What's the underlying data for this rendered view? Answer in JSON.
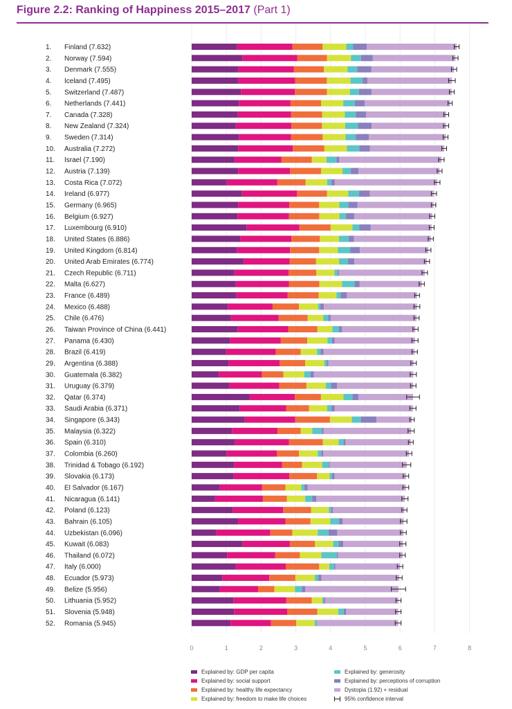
{
  "figure": {
    "title": "Figure 2.2: Ranking of Happiness 2015–2017",
    "part": "(Part 1)"
  },
  "colors": {
    "gdp": "#7e2c84",
    "social": "#e0157f",
    "health": "#ef6e3c",
    "freedom": "#d6e23c",
    "generosity": "#5cc5c6",
    "corruption": "#8a80be",
    "dystopia": "#c6a6d3",
    "title": "#8c2f8f"
  },
  "legend": {
    "gdp": "Explained by: GDP per capita",
    "social": "Explained by: social support",
    "health": "Explained by: healthy life expectancy",
    "freedom": "Explained by: freedom to make life choices",
    "generosity": "Explained by: generosity",
    "corruption": "Explained by: perceptions of corruption",
    "dystopia": "Dystopia (1.92) + residual",
    "ci": "95% confidence interval"
  },
  "chart_data": {
    "type": "bar",
    "orientation": "horizontal",
    "stacked": true,
    "xlim": [
      0,
      8
    ],
    "xticks": [
      "0",
      "1",
      "2",
      "3",
      "4",
      "5",
      "6",
      "7",
      "8"
    ],
    "component_keys": [
      "gdp",
      "social",
      "health",
      "freedom",
      "generosity",
      "corruption",
      "dystopia"
    ],
    "countries": [
      {
        "rank": "1.",
        "label": "Finland (7.632)",
        "score": 7.632,
        "ci": [
          7.56,
          7.7
        ],
        "parts": [
          1.31,
          1.59,
          0.87,
          0.68,
          0.2,
          0.39,
          2.59
        ]
      },
      {
        "rank": "2.",
        "label": "Norway (7.594)",
        "score": 7.594,
        "ci": [
          7.52,
          7.67
        ],
        "parts": [
          1.46,
          1.58,
          0.86,
          0.69,
          0.29,
          0.34,
          2.38
        ]
      },
      {
        "rank": "3.",
        "label": "Denmark (7.555)",
        "score": 7.555,
        "ci": [
          7.48,
          7.63
        ],
        "parts": [
          1.35,
          1.59,
          0.87,
          0.68,
          0.28,
          0.41,
          2.38
        ]
      },
      {
        "rank": "4.",
        "label": "Iceland (7.495)",
        "score": 7.495,
        "ci": [
          7.4,
          7.59
        ],
        "parts": [
          1.34,
          1.64,
          0.91,
          0.68,
          0.35,
          0.14,
          2.43
        ]
      },
      {
        "rank": "5.",
        "label": "Switzerland (7.487)",
        "score": 7.487,
        "ci": [
          7.42,
          7.56
        ],
        "parts": [
          1.42,
          1.55,
          0.93,
          0.66,
          0.26,
          0.36,
          2.31
        ]
      },
      {
        "rank": "6.",
        "label": "Netherlands (7.441)",
        "score": 7.441,
        "ci": [
          7.38,
          7.5
        ],
        "parts": [
          1.36,
          1.49,
          0.88,
          0.64,
          0.33,
          0.29,
          2.46
        ]
      },
      {
        "rank": "7.",
        "label": "Canada (7.328)",
        "score": 7.328,
        "ci": [
          7.26,
          7.4
        ],
        "parts": [
          1.33,
          1.53,
          0.9,
          0.65,
          0.32,
          0.29,
          2.31
        ]
      },
      {
        "rank": "8.",
        "label": "New Zealand (7.324)",
        "score": 7.324,
        "ci": [
          7.25,
          7.4
        ],
        "parts": [
          1.27,
          1.6,
          0.88,
          0.67,
          0.37,
          0.39,
          2.14
        ]
      },
      {
        "rank": "9.",
        "label": "Sweden (7.314)",
        "score": 7.314,
        "ci": [
          7.24,
          7.38
        ],
        "parts": [
          1.36,
          1.5,
          0.91,
          0.66,
          0.29,
          0.38,
          2.21
        ]
      },
      {
        "rank": "10.",
        "label": "Australia (7.272)",
        "score": 7.272,
        "ci": [
          7.2,
          7.34
        ],
        "parts": [
          1.34,
          1.57,
          0.91,
          0.65,
          0.36,
          0.3,
          2.14
        ]
      },
      {
        "rank": "11.",
        "label": "Israel (7.190)",
        "score": 7.19,
        "ci": [
          7.11,
          7.27
        ],
        "parts": [
          1.24,
          1.34,
          0.88,
          0.42,
          0.29,
          0.08,
          2.94
        ]
      },
      {
        "rank": "12.",
        "label": "Austria (7.139)",
        "score": 7.139,
        "ci": [
          7.07,
          7.21
        ],
        "parts": [
          1.34,
          1.5,
          0.89,
          0.62,
          0.24,
          0.22,
          2.34
        ]
      },
      {
        "rank": "13.",
        "label": "Costa Rica (7.072)",
        "score": 7.072,
        "ci": [
          6.99,
          7.15
        ],
        "parts": [
          1.01,
          1.45,
          0.82,
          0.62,
          0.12,
          0.1,
          2.95
        ]
      },
      {
        "rank": "14.",
        "label": "Ireland (6.977)",
        "score": 6.977,
        "ci": [
          6.9,
          7.05
        ],
        "parts": [
          1.45,
          1.58,
          0.87,
          0.61,
          0.31,
          0.31,
          1.85
        ]
      },
      {
        "rank": "15.",
        "label": "Germany (6.965)",
        "score": 6.965,
        "ci": [
          6.9,
          7.03
        ],
        "parts": [
          1.34,
          1.47,
          0.86,
          0.58,
          0.26,
          0.26,
          2.19
        ]
      },
      {
        "rank": "16.",
        "label": "Belgium (6.927)",
        "score": 6.927,
        "ci": [
          6.85,
          7.0
        ],
        "parts": [
          1.32,
          1.48,
          0.87,
          0.58,
          0.19,
          0.24,
          2.24
        ]
      },
      {
        "rank": "17.",
        "label": "Luxembourg (6.910)",
        "score": 6.91,
        "ci": [
          6.84,
          6.98
        ],
        "parts": [
          1.58,
          1.52,
          0.9,
          0.63,
          0.2,
          0.32,
          1.76
        ]
      },
      {
        "rank": "18.",
        "label": "United States (6.886)",
        "score": 6.886,
        "ci": [
          6.81,
          6.96
        ],
        "parts": [
          1.4,
          1.47,
          0.82,
          0.55,
          0.28,
          0.15,
          2.21
        ]
      },
      {
        "rank": "19.",
        "label": "United Kingdom (6.814)",
        "score": 6.814,
        "ci": [
          6.74,
          6.89
        ],
        "parts": [
          1.3,
          1.53,
          0.84,
          0.54,
          0.35,
          0.28,
          1.97
        ]
      },
      {
        "rank": "20.",
        "label": "United Arab Emirates (6.774)",
        "score": 6.774,
        "ci": [
          6.7,
          6.85
        ],
        "parts": [
          1.5,
          1.32,
          0.76,
          0.66,
          0.26,
          0.18,
          2.09
        ]
      },
      {
        "rank": "21.",
        "label": "Czech Republic (6.711)",
        "score": 6.711,
        "ci": [
          6.63,
          6.79
        ],
        "parts": [
          1.23,
          1.56,
          0.8,
          0.52,
          0.09,
          0.04,
          2.47
        ]
      },
      {
        "rank": "22.",
        "label": "Malta (6.627)",
        "score": 6.627,
        "ci": [
          6.55,
          6.7
        ],
        "parts": [
          1.27,
          1.53,
          0.88,
          0.65,
          0.36,
          0.15,
          1.79
        ]
      },
      {
        "rank": "23.",
        "label": "France (6.489)",
        "score": 6.489,
        "ci": [
          6.42,
          6.56
        ],
        "parts": [
          1.29,
          1.47,
          0.9,
          0.51,
          0.12,
          0.18,
          2.02
        ]
      },
      {
        "rank": "24.",
        "label": "Mexico (6.488)",
        "score": 6.488,
        "ci": [
          6.4,
          6.57
        ],
        "parts": [
          1.04,
          1.29,
          0.76,
          0.55,
          0.06,
          0.11,
          2.68
        ]
      },
      {
        "rank": "25.",
        "label": "Chile (6.476)",
        "score": 6.476,
        "ci": [
          6.4,
          6.55
        ],
        "parts": [
          1.13,
          1.38,
          0.84,
          0.45,
          0.14,
          0.07,
          2.48
        ]
      },
      {
        "rank": "26.",
        "label": "Taiwan Province of China (6.441)",
        "score": 6.441,
        "ci": [
          6.37,
          6.52
        ],
        "parts": [
          1.32,
          1.46,
          0.84,
          0.43,
          0.19,
          0.09,
          2.11
        ]
      },
      {
        "rank": "27.",
        "label": "Panama (6.430)",
        "score": 6.43,
        "ci": [
          6.34,
          6.52
        ],
        "parts": [
          1.11,
          1.45,
          0.77,
          0.58,
          0.13,
          0.08,
          2.31
        ]
      },
      {
        "rank": "28.",
        "label": "Brazil (6.419)",
        "score": 6.419,
        "ci": [
          6.34,
          6.5
        ],
        "parts": [
          0.99,
          1.43,
          0.72,
          0.47,
          0.1,
          0.09,
          2.62
        ]
      },
      {
        "rank": "29.",
        "label": "Argentina (6.388)",
        "score": 6.388,
        "ci": [
          6.31,
          6.47
        ],
        "parts": [
          1.07,
          1.46,
          0.74,
          0.55,
          0.07,
          0.05,
          2.45
        ]
      },
      {
        "rank": "30.",
        "label": "Guatemala (6.382)",
        "score": 6.382,
        "ci": [
          6.29,
          6.47
        ],
        "parts": [
          0.78,
          1.24,
          0.62,
          0.6,
          0.18,
          0.1,
          2.86
        ]
      },
      {
        "rank": "31.",
        "label": "Uruguay (6.379)",
        "score": 6.379,
        "ci": [
          6.3,
          6.46
        ],
        "parts": [
          1.09,
          1.43,
          0.78,
          0.56,
          0.15,
          0.17,
          2.19
        ]
      },
      {
        "rank": "32.",
        "label": "Qatar (6.374)",
        "score": 6.374,
        "ci": [
          6.19,
          6.56
        ],
        "parts": [
          1.67,
          1.3,
          0.75,
          0.65,
          0.26,
          0.17,
          1.57
        ]
      },
      {
        "rank": "33.",
        "label": "Saudi Arabia (6.371)",
        "score": 6.371,
        "ci": [
          6.28,
          6.46
        ],
        "parts": [
          1.38,
          1.34,
          0.66,
          0.52,
          0.12,
          0.1,
          2.25
        ]
      },
      {
        "rank": "34.",
        "label": "Singapore (6.343)",
        "score": 6.343,
        "ci": [
          6.28,
          6.41
        ],
        "parts": [
          1.53,
          1.45,
          1.0,
          0.63,
          0.26,
          0.45,
          1.02
        ]
      },
      {
        "rank": "35.",
        "label": "Malaysia (6.322)",
        "score": 6.322,
        "ci": [
          6.23,
          6.41
        ],
        "parts": [
          1.16,
          1.31,
          0.67,
          0.33,
          0.28,
          0.05,
          2.52
        ]
      },
      {
        "rank": "36.",
        "label": "Spain (6.310)",
        "score": 6.31,
        "ci": [
          6.24,
          6.38
        ],
        "parts": [
          1.25,
          1.55,
          0.98,
          0.45,
          0.14,
          0.06,
          1.88
        ]
      },
      {
        "rank": "37.",
        "label": "Colombia (6.260)",
        "score": 6.26,
        "ci": [
          6.18,
          6.34
        ],
        "parts": [
          1.0,
          1.45,
          0.64,
          0.54,
          0.1,
          0.06,
          2.47
        ]
      },
      {
        "rank": "38.",
        "label": "Trinidad & Tobago (6.192)",
        "score": 6.192,
        "ci": [
          6.07,
          6.31
        ],
        "parts": [
          1.22,
          1.38,
          0.57,
          0.58,
          0.19,
          0.03,
          2.21
        ]
      },
      {
        "rank": "39.",
        "label": "Slovakia (6.173)",
        "score": 6.173,
        "ci": [
          6.09,
          6.25
        ],
        "parts": [
          1.21,
          1.6,
          0.8,
          0.36,
          0.07,
          0.07,
          2.06
        ]
      },
      {
        "rank": "40.",
        "label": "El Salvador (6.167)",
        "score": 6.167,
        "ci": [
          6.08,
          6.25
        ],
        "parts": [
          0.81,
          1.22,
          0.67,
          0.46,
          0.09,
          0.09,
          2.83
        ]
      },
      {
        "rank": "41.",
        "label": "Nicaragua (6.141)",
        "score": 6.141,
        "ci": [
          6.05,
          6.23
        ],
        "parts": [
          0.67,
          1.38,
          0.69,
          0.53,
          0.2,
          0.12,
          2.55
        ]
      },
      {
        "rank": "42.",
        "label": "Poland (6.123)",
        "score": 6.123,
        "ci": [
          6.05,
          6.2
        ],
        "parts": [
          1.18,
          1.45,
          0.8,
          0.51,
          0.07,
          0.05,
          2.05
        ]
      },
      {
        "rank": "43.",
        "label": "Bahrain (6.105)",
        "score": 6.105,
        "ci": [
          6.01,
          6.2
        ],
        "parts": [
          1.34,
          1.37,
          0.72,
          0.57,
          0.25,
          0.11,
          1.76
        ]
      },
      {
        "rank": "44.",
        "label": "Uzbekistan (6.096)",
        "score": 6.096,
        "ci": [
          6.01,
          6.18
        ],
        "parts": [
          0.71,
          1.55,
          0.63,
          0.73,
          0.31,
          0.25,
          1.9
        ]
      },
      {
        "rank": "45.",
        "label": "Kuwait (6.083)",
        "score": 6.083,
        "ci": [
          5.99,
          6.17
        ],
        "parts": [
          1.47,
          1.36,
          0.72,
          0.53,
          0.16,
          0.13,
          1.72
        ]
      },
      {
        "rank": "46.",
        "label": "Thailand (6.072)",
        "score": 6.072,
        "ci": [
          5.99,
          6.15
        ],
        "parts": [
          1.02,
          1.39,
          0.71,
          0.62,
          0.45,
          0.03,
          1.86
        ]
      },
      {
        "rank": "47.",
        "label": "Italy (6.000)",
        "score": 6.0,
        "ci": [
          5.92,
          6.08
        ],
        "parts": [
          1.26,
          1.44,
          0.96,
          0.29,
          0.14,
          0.03,
          1.86
        ]
      },
      {
        "rank": "48.",
        "label": "Ecuador (5.973)",
        "score": 5.973,
        "ci": [
          5.89,
          6.06
        ],
        "parts": [
          0.88,
          1.35,
          0.75,
          0.56,
          0.1,
          0.09,
          2.23
        ]
      },
      {
        "rank": "49.",
        "label": "Belize (5.956)",
        "score": 5.956,
        "ci": [
          5.75,
          6.16
        ],
        "parts": [
          0.81,
          1.1,
          0.47,
          0.59,
          0.2,
          0.1,
          2.68
        ]
      },
      {
        "rank": "50.",
        "label": "Lithuania (5.952)",
        "score": 5.952,
        "ci": [
          5.88,
          6.03
        ],
        "parts": [
          1.2,
          1.53,
          0.73,
          0.31,
          0.05,
          0.03,
          2.11
        ]
      },
      {
        "rank": "51.",
        "label": "Slovenia (5.948)",
        "score": 5.948,
        "ci": [
          5.87,
          6.03
        ],
        "parts": [
          1.22,
          1.53,
          0.87,
          0.6,
          0.16,
          0.07,
          1.5
        ]
      },
      {
        "rank": "52.",
        "label": "Romania (5.945)",
        "score": 5.945,
        "ci": [
          5.86,
          6.03
        ],
        "parts": [
          1.12,
          1.16,
          0.73,
          0.53,
          0.06,
          0.01,
          2.33
        ]
      }
    ]
  }
}
